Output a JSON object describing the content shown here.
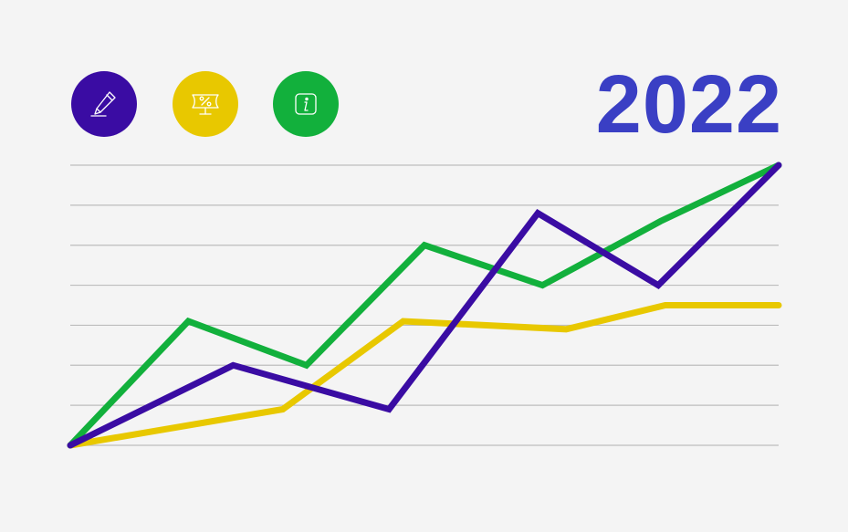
{
  "header": {
    "title": "2022",
    "title_color": "#3a3fc4"
  },
  "legend": [
    {
      "icon": "pencil-icon",
      "color": "#3a0ca3"
    },
    {
      "icon": "percent-sign-icon",
      "color": "#e8c800"
    },
    {
      "icon": "info-icon",
      "color": "#12b03c"
    }
  ],
  "chart_data": {
    "type": "line",
    "title": "",
    "xlabel": "",
    "ylabel": "",
    "grid": true,
    "legend_placement": "top-left",
    "ylim": [
      0,
      7
    ],
    "gridline_values": [
      0,
      1,
      2,
      3,
      4,
      5,
      6,
      7
    ],
    "series": [
      {
        "color": "#12b03c",
        "points": [
          [
            0,
            0
          ],
          [
            1,
            3.1
          ],
          [
            2,
            2.0
          ],
          [
            3,
            5.0
          ],
          [
            4,
            4.0
          ],
          [
            5,
            5.6
          ],
          [
            6,
            7.0
          ]
        ]
      },
      {
        "color": "#3a0ca3",
        "points": [
          [
            0,
            0
          ],
          [
            2.3,
            2.0
          ],
          [
            4.5,
            0.9
          ],
          [
            6.6,
            5.8
          ],
          [
            8.3,
            4.0
          ],
          [
            10,
            7.0
          ]
        ]
      },
      {
        "color": "#e8c800",
        "points": [
          [
            0,
            0
          ],
          [
            3,
            0.9
          ],
          [
            4.7,
            3.1
          ],
          [
            7,
            2.9
          ],
          [
            8.4,
            3.5
          ],
          [
            10,
            3.5
          ]
        ]
      }
    ]
  }
}
